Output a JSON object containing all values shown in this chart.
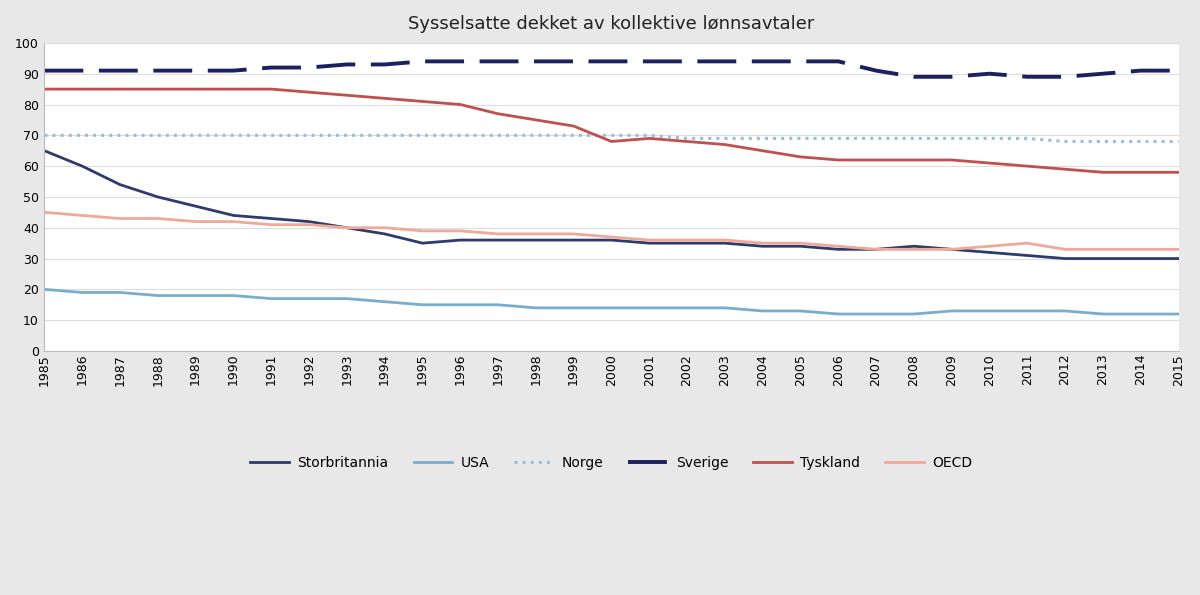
{
  "title": "Sysselsatte dekket av kollektive lønnsavtaler",
  "years": [
    1985,
    1986,
    1987,
    1988,
    1989,
    1990,
    1991,
    1992,
    1993,
    1994,
    1995,
    1996,
    1997,
    1998,
    1999,
    2000,
    2001,
    2002,
    2003,
    2004,
    2005,
    2006,
    2007,
    2008,
    2009,
    2010,
    2011,
    2012,
    2013,
    2014,
    2015
  ],
  "Storbritannia": [
    65,
    60,
    54,
    50,
    47,
    44,
    43,
    42,
    40,
    38,
    35,
    36,
    36,
    36,
    36,
    36,
    35,
    35,
    35,
    34,
    34,
    33,
    33,
    34,
    33,
    32,
    31,
    30,
    30,
    30,
    30
  ],
  "USA": [
    20,
    19,
    19,
    18,
    18,
    18,
    17,
    17,
    17,
    16,
    15,
    15,
    15,
    14,
    14,
    14,
    14,
    14,
    14,
    13,
    13,
    12,
    12,
    12,
    13,
    13,
    13,
    13,
    12,
    12,
    12
  ],
  "Norge": [
    70,
    70,
    70,
    70,
    70,
    70,
    70,
    70,
    70,
    70,
    70,
    70,
    70,
    70,
    70,
    70,
    70,
    69,
    69,
    69,
    69,
    69,
    69,
    69,
    69,
    69,
    69,
    68,
    68,
    68,
    68
  ],
  "Sverige": [
    91,
    91,
    91,
    91,
    91,
    91,
    92,
    92,
    93,
    93,
    94,
    94,
    94,
    94,
    94,
    94,
    94,
    94,
    94,
    94,
    94,
    94,
    91,
    89,
    89,
    90,
    89,
    89,
    90,
    91,
    91
  ],
  "Tyskland": [
    85,
    85,
    85,
    85,
    85,
    85,
    85,
    84,
    83,
    82,
    81,
    80,
    77,
    75,
    73,
    68,
    69,
    68,
    67,
    65,
    63,
    62,
    62,
    62,
    62,
    61,
    60,
    59,
    58,
    58,
    58
  ],
  "OECD": [
    45,
    44,
    43,
    43,
    42,
    42,
    41,
    41,
    40,
    40,
    39,
    39,
    38,
    38,
    38,
    37,
    36,
    36,
    36,
    35,
    35,
    34,
    33,
    33,
    33,
    34,
    35,
    33,
    33,
    33,
    33
  ],
  "series_styles": {
    "Storbritannia": {
      "color": "#2d3b6e",
      "linestyle": "-",
      "linewidth": 2.0,
      "dashes": null
    },
    "USA": {
      "color": "#7aacce",
      "linestyle": "-",
      "linewidth": 2.0,
      "dashes": null
    },
    "Norge": {
      "color": "#9abdd8",
      "linestyle": ":",
      "linewidth": 2.2,
      "dotsize": 3,
      "dashes": null
    },
    "Sverige": {
      "color": "#1a2060",
      "linestyle": "--",
      "linewidth": 2.8,
      "dashes": [
        10,
        4
      ]
    },
    "Tyskland": {
      "color": "#c0504d",
      "linestyle": "-",
      "linewidth": 2.0,
      "dashes": null
    },
    "OECD": {
      "color": "#f0a898",
      "linestyle": "-",
      "linewidth": 2.0,
      "dashes": null
    }
  },
  "legend_order": [
    "Storbritannia",
    "USA",
    "Norge",
    "Sverige",
    "Tyskland",
    "OECD"
  ],
  "ylim": [
    0,
    100
  ],
  "yticks": [
    0,
    10,
    20,
    30,
    40,
    50,
    60,
    70,
    80,
    90,
    100
  ],
  "figure_bg": "#e8e8e8",
  "plot_bg": "#ffffff",
  "grid_color": "#dddddd",
  "spine_color": "#bbbbbb",
  "title_fontsize": 13,
  "tick_fontsize": 9,
  "legend_fontsize": 10
}
